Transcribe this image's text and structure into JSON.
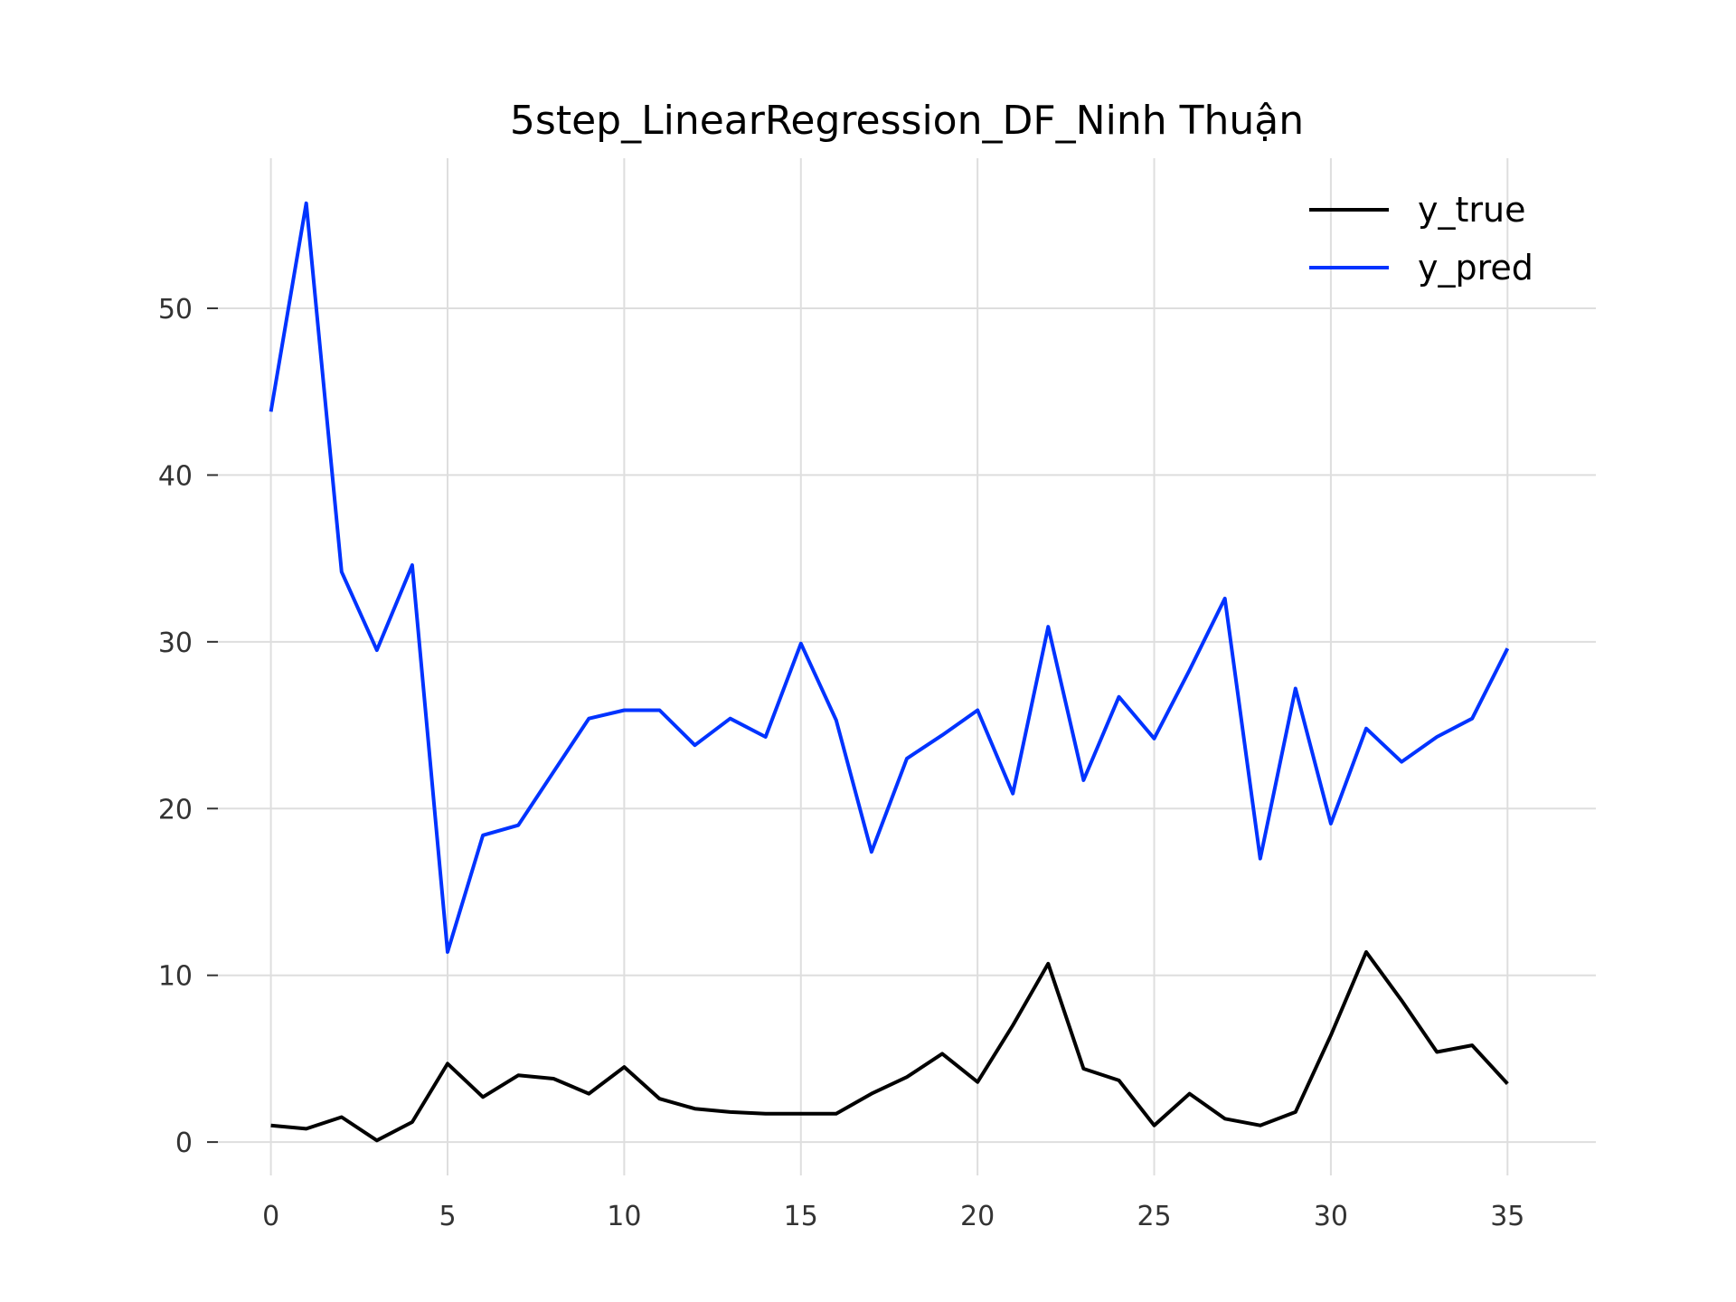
{
  "chart_data": {
    "type": "line",
    "title": "5step_LinearRegression_DF_Ninh Thuận",
    "xlabel": "",
    "ylabel": "",
    "xlim": [
      -1.5,
      37.5
    ],
    "ylim": [
      -2.0,
      59.0
    ],
    "x_ticks": [
      0,
      5,
      10,
      15,
      20,
      25,
      30,
      35
    ],
    "y_ticks": [
      0,
      10,
      20,
      30,
      40,
      50
    ],
    "grid": true,
    "legend_position": "top-right",
    "x": [
      0,
      1,
      2,
      3,
      4,
      5,
      6,
      7,
      8,
      9,
      10,
      11,
      12,
      13,
      14,
      15,
      16,
      17,
      18,
      19,
      20,
      21,
      22,
      23,
      24,
      25,
      26,
      27,
      28,
      29,
      30,
      31,
      32,
      33,
      34,
      35
    ],
    "series": [
      {
        "name": "y_true",
        "color": "#000000",
        "values": [
          1.0,
          0.8,
          1.5,
          0.1,
          1.2,
          4.7,
          2.7,
          4.0,
          3.8,
          2.9,
          4.5,
          2.6,
          2.0,
          1.8,
          1.7,
          1.7,
          1.7,
          2.9,
          3.9,
          5.3,
          3.6,
          7.0,
          10.7,
          4.4,
          3.7,
          1.0,
          2.9,
          1.4,
          1.0,
          1.8,
          6.4,
          11.4,
          8.5,
          5.4,
          5.8,
          3.5
        ]
      },
      {
        "name": "y_pred",
        "color": "#0033ff",
        "values": [
          43.8,
          56.3,
          34.2,
          29.5,
          34.6,
          11.4,
          18.4,
          19.0,
          22.2,
          25.4,
          25.9,
          25.9,
          23.8,
          25.4,
          24.3,
          29.9,
          25.3,
          17.4,
          23.0,
          24.4,
          25.9,
          20.9,
          30.9,
          21.7,
          26.7,
          24.2,
          28.3,
          32.6,
          17.0,
          27.2,
          19.1,
          24.8,
          22.8,
          24.3,
          25.4,
          29.6
        ]
      }
    ]
  }
}
